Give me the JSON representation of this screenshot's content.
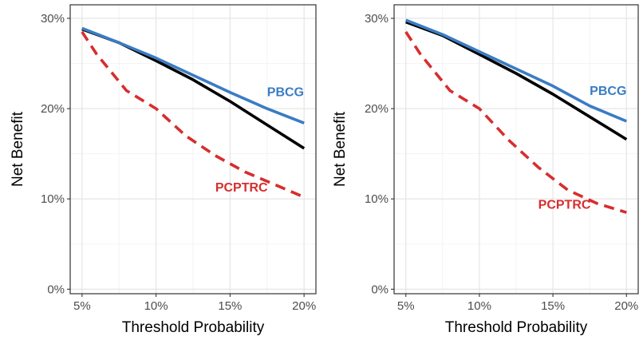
{
  "chart_data": [
    {
      "type": "line",
      "xlabel": "Threshold Probability",
      "ylabel": "Net Benefit",
      "xlim": [
        4.2,
        20.8
      ],
      "ylim": [
        -0.5,
        31.5
      ],
      "x_ticks": [
        5,
        10,
        15,
        20
      ],
      "x_tick_labels": [
        "5%",
        "10%",
        "15%",
        "20%"
      ],
      "y_ticks": [
        0,
        10,
        20,
        30
      ],
      "y_tick_labels": [
        "0%",
        "10%",
        "20%",
        "30%"
      ],
      "grid": true,
      "legend": "none",
      "series": [
        {
          "name": "",
          "color": "#000000",
          "style": "solid",
          "x": [
            5,
            7.5,
            10,
            12.5,
            15,
            17.5,
            20
          ],
          "values": [
            28.8,
            27.3,
            25.3,
            23.2,
            20.8,
            18.2,
            15.6
          ]
        },
        {
          "name": "PBCG",
          "color": "#3a7cc4",
          "style": "solid",
          "x": [
            5,
            7.5,
            10,
            12.5,
            15,
            17.5,
            20
          ],
          "values": [
            28.9,
            27.3,
            25.6,
            23.7,
            21.8,
            20.0,
            18.4
          ]
        },
        {
          "name": "PCPTRC",
          "color": "#d62e2e",
          "style": "dashed",
          "x": [
            5,
            6,
            7,
            8,
            9,
            10,
            12,
            14,
            16,
            18,
            20
          ],
          "values": [
            28.5,
            26.0,
            24.0,
            22.0,
            21.0,
            20.0,
            17.0,
            14.8,
            13.0,
            11.6,
            10.2
          ]
        }
      ],
      "annotations": [
        {
          "text": "PBCG",
          "color": "#3a7cc4",
          "x": 17.5,
          "y": 21.4
        },
        {
          "text": "PCPTRC",
          "color": "#d62e2e",
          "x": 14.0,
          "y": 10.8
        }
      ]
    },
    {
      "type": "line",
      "xlabel": "Threshold Probability",
      "ylabel": "Net Benefit",
      "xlim": [
        4.2,
        20.8
      ],
      "ylim": [
        -0.5,
        31.5
      ],
      "x_ticks": [
        5,
        10,
        15,
        20
      ],
      "x_tick_labels": [
        "5%",
        "10%",
        "15%",
        "20%"
      ],
      "y_ticks": [
        0,
        10,
        20,
        30
      ],
      "y_tick_labels": [
        "0%",
        "10%",
        "20%",
        "30%"
      ],
      "grid": true,
      "legend": "none",
      "series": [
        {
          "name": "",
          "color": "#000000",
          "style": "solid",
          "x": [
            5,
            7.5,
            10,
            12.5,
            15,
            17.5,
            20
          ],
          "values": [
            29.6,
            28.1,
            26.0,
            23.9,
            21.6,
            19.1,
            16.6
          ]
        },
        {
          "name": "PBCG",
          "color": "#3a7cc4",
          "style": "solid",
          "x": [
            5,
            7.5,
            10,
            12.5,
            15,
            17.5,
            20
          ],
          "values": [
            29.8,
            28.2,
            26.3,
            24.4,
            22.5,
            20.3,
            18.6
          ]
        },
        {
          "name": "PCPTRC",
          "color": "#d62e2e",
          "style": "dashed",
          "x": [
            5,
            6,
            7,
            8,
            9,
            10,
            12,
            14,
            16,
            18,
            20
          ],
          "values": [
            28.5,
            26.0,
            24.0,
            22.0,
            21.0,
            20.0,
            16.5,
            13.5,
            11.0,
            9.5,
            8.5
          ]
        }
      ],
      "annotations": [
        {
          "text": "PBCG",
          "color": "#3a7cc4",
          "x": 17.5,
          "y": 21.5
        },
        {
          "text": "PCPTRC",
          "color": "#d62e2e",
          "x": 14.0,
          "y": 8.9
        }
      ]
    }
  ]
}
